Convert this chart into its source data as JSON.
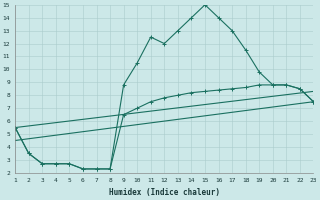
{
  "xlabel": "Humidex (Indice chaleur)",
  "bg_color": "#cce8e8",
  "grid_color": "#aacccc",
  "line_color": "#1a7060",
  "xlim": [
    1,
    23
  ],
  "ylim": [
    2,
    15
  ],
  "xticks": [
    1,
    2,
    3,
    4,
    5,
    6,
    7,
    8,
    9,
    10,
    11,
    12,
    13,
    14,
    15,
    16,
    17,
    18,
    19,
    20,
    21,
    22,
    23
  ],
  "yticks": [
    2,
    3,
    4,
    5,
    6,
    7,
    8,
    9,
    10,
    11,
    12,
    13,
    14,
    15
  ],
  "line1_x": [
    1,
    2,
    3,
    4,
    5,
    6,
    7,
    8,
    9,
    10,
    11,
    12,
    13,
    14,
    15,
    16,
    17,
    18,
    19,
    20,
    21,
    22,
    23
  ],
  "line1_y": [
    5.5,
    3.5,
    2.7,
    2.7,
    2.7,
    2.3,
    2.3,
    2.3,
    8.8,
    10.5,
    12.5,
    12.0,
    13.0,
    14.0,
    15.0,
    14.0,
    13.0,
    11.5,
    9.8,
    8.8,
    8.8,
    8.5,
    7.5
  ],
  "line2_x": [
    1,
    23
  ],
  "line2_y": [
    5.5,
    8.3
  ],
  "line3_x": [
    1,
    23
  ],
  "line3_y": [
    4.5,
    7.5
  ],
  "line4_x": [
    1,
    2,
    3,
    4,
    5,
    6,
    7,
    8,
    9,
    10,
    11,
    12,
    13,
    14,
    15,
    16,
    17,
    18,
    19,
    20,
    21,
    22,
    23
  ],
  "line4_y": [
    5.5,
    3.5,
    2.7,
    2.7,
    2.7,
    2.3,
    2.3,
    2.3,
    6.5,
    7.0,
    7.5,
    7.8,
    8.0,
    8.2,
    8.3,
    8.4,
    8.5,
    8.6,
    8.8,
    8.8,
    8.8,
    8.5,
    7.5
  ]
}
